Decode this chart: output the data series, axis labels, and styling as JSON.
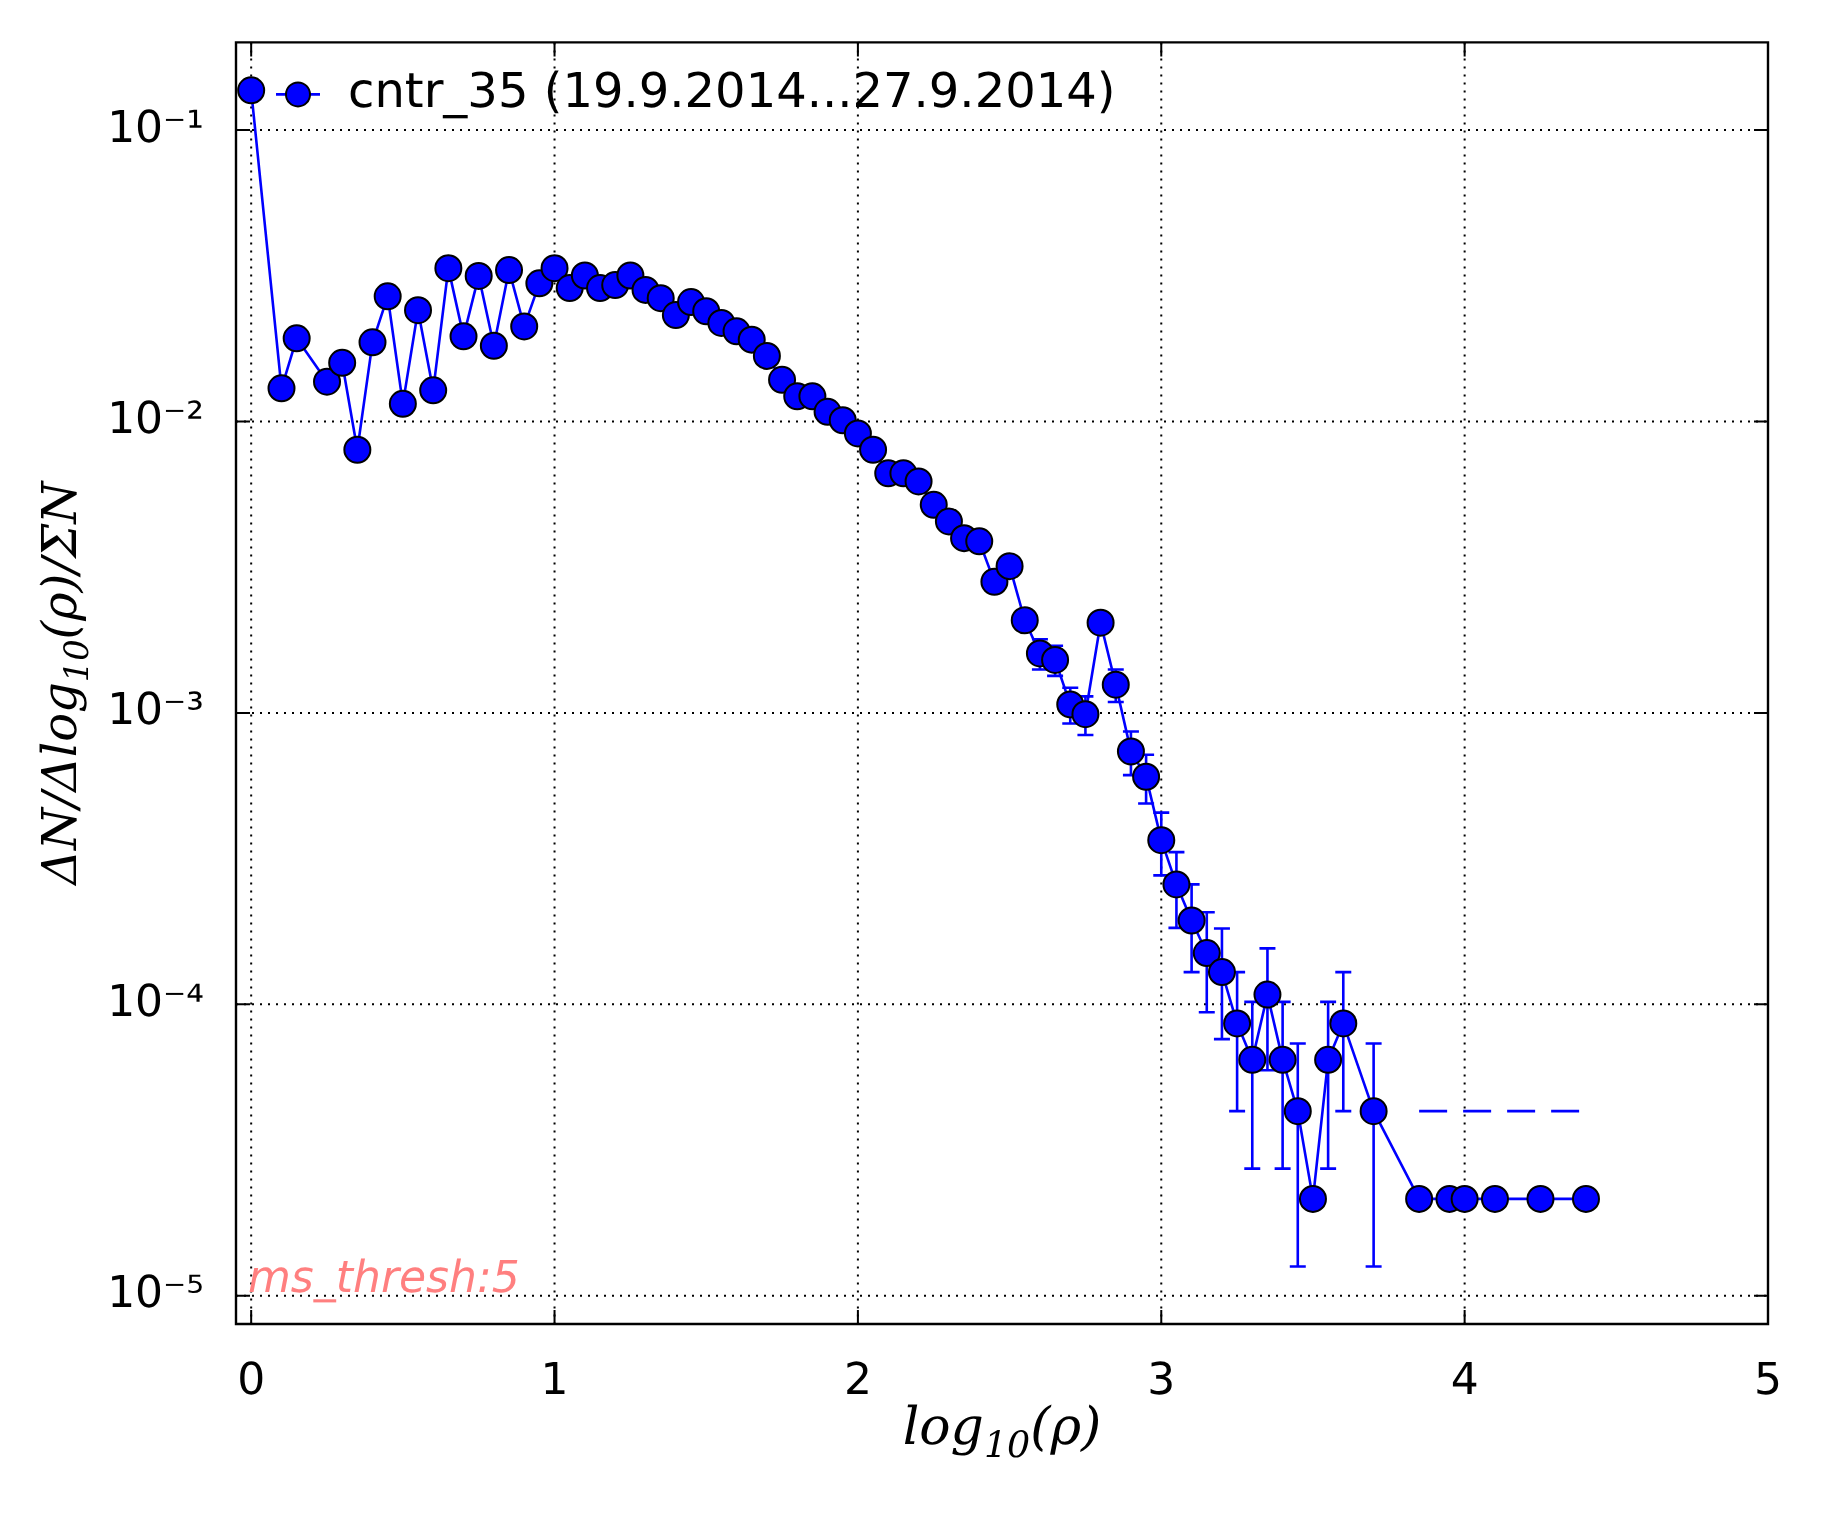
{
  "chart_data": {
    "type": "line",
    "xlabel": "log$_{10}$(ρ)",
    "ylabel": "ΔN/Δlog$_{10}$(ρ)/ΣN",
    "annotations": [
      "ms_thresh:5"
    ],
    "log": "y",
    "grid": true,
    "legend": "top left",
    "marker": "circle",
    "line_style": "solid",
    "xlim": [
      -0.05,
      5
    ],
    "xticks": [
      0,
      1,
      2,
      3,
      4,
      5
    ],
    "ylim": [
      8e-06,
      0.2
    ],
    "yticks": [
      {
        "value": 1e-05,
        "label": "10⁻⁵"
      },
      {
        "value": 0.0001,
        "label": "10⁻⁴"
      },
      {
        "value": 0.001,
        "label": "10⁻³"
      },
      {
        "value": 0.01,
        "label": "10⁻²"
      },
      {
        "value": 0.1,
        "label": "10⁻¹"
      }
    ],
    "series": [
      {
        "name": "cntr_35 (19.9.2014...27.9.2014)",
        "color": "#0000ff",
        "x": [
          0,
          0.1,
          0.15,
          0.25,
          0.3,
          0.35,
          0.4,
          0.45,
          0.5,
          0.55,
          0.6,
          0.65,
          0.7,
          0.75,
          0.8,
          0.85,
          0.9,
          0.95,
          1.0,
          1.05,
          1.1,
          1.15,
          1.2,
          1.25,
          1.3,
          1.35,
          1.4,
          1.45,
          1.5,
          1.55,
          1.6,
          1.65,
          1.7,
          1.75,
          1.8,
          1.85,
          1.9,
          1.95,
          2.0,
          2.05,
          2.1,
          2.15,
          2.2,
          2.25,
          2.3,
          2.35,
          2.4,
          2.45,
          2.5,
          2.55,
          2.6,
          2.65,
          2.7,
          2.75,
          2.8,
          2.85,
          2.9,
          2.95,
          3.0,
          3.05,
          3.1,
          3.15,
          3.2,
          3.25,
          3.3,
          3.35,
          3.4,
          3.45,
          3.5,
          3.55,
          3.6,
          3.7,
          3.85,
          3.95,
          4.0,
          4.1,
          4.25,
          4.4
        ],
        "values": [
          0.137,
          0.013,
          0.0193,
          0.0137,
          0.0159,
          0.008,
          0.0187,
          0.0269,
          0.0115,
          0.0241,
          0.0128,
          0.0336,
          0.0196,
          0.0316,
          0.0182,
          0.0331,
          0.0212,
          0.0298,
          0.0336,
          0.0287,
          0.0317,
          0.0287,
          0.0294,
          0.0317,
          0.0283,
          0.0265,
          0.0232,
          0.0257,
          0.0239,
          0.0218,
          0.0204,
          0.0191,
          0.0168,
          0.0139,
          0.0122,
          0.0122,
          0.0108,
          0.0101,
          0.0091,
          0.008,
          0.00664,
          0.00664,
          0.00623,
          0.00518,
          0.00454,
          0.00398,
          0.00388,
          0.00282,
          0.00319,
          0.00208,
          0.0016,
          0.00152,
          0.00107,
          0.00099,
          0.00204,
          0.00125,
          0.000738,
          0.000604,
          0.000366,
          0.000258,
          0.000194,
          0.00015,
          0.000129,
          8.6e-05,
          6.45e-05,
          0.000108,
          6.45e-05,
          4.3e-05,
          2.15e-05,
          6.45e-05,
          8.6e-05,
          4.3e-05,
          2.15e-05,
          2.15e-05,
          2.15e-05,
          2.15e-05,
          2.15e-05,
          2.15e-05
        ],
        "errors": [
          null,
          null,
          null,
          null,
          null,
          null,
          null,
          null,
          null,
          null,
          null,
          null,
          null,
          null,
          null,
          null,
          null,
          null,
          null,
          null,
          null,
          null,
          null,
          null,
          null,
          null,
          null,
          null,
          null,
          null,
          null,
          null,
          null,
          null,
          null,
          null,
          null,
          null,
          null,
          null,
          null,
          null,
          null,
          null,
          null,
          null,
          null,
          null,
          null,
          null,
          [
            0.00141,
            0.00179
          ],
          [
            0.00134,
            0.0017
          ],
          [
            0.00092,
            0.00122
          ],
          [
            0.00084,
            0.00114
          ],
          null,
          [
            0.00109,
            0.00141
          ],
          [
            0.000612,
            0.000864
          ],
          [
            0.000489,
            0.000719
          ],
          [
            0.000277,
            0.000455
          ],
          [
            0.000183,
            0.000333
          ],
          [
            0.000129,
            0.000258
          ],
          [
            9.4e-05,
            0.000207
          ],
          [
            7.6e-05,
            0.000182
          ],
          [
            4.3e-05,
            0.000129
          ],
          [
            2.73e-05,
            0.000102
          ],
          [
            5.94e-05,
            0.0001556
          ],
          [
            2.73e-05,
            0.000102
          ],
          [
            1.26e-05,
            7.34e-05
          ],
          null,
          [
            2.73e-05,
            0.000102
          ],
          [
            4.3e-05,
            0.000129
          ],
          [
            1.26e-05,
            7.34e-05
          ],
          null,
          null,
          null,
          null,
          null,
          null
        ]
      },
      {
        "color": "#0000ff",
        "marker": "none",
        "line_style": "dashed",
        "x": [
          3.85,
          4.4
        ],
        "values": [
          4.3e-05,
          4.3e-05
        ]
      }
    ]
  }
}
